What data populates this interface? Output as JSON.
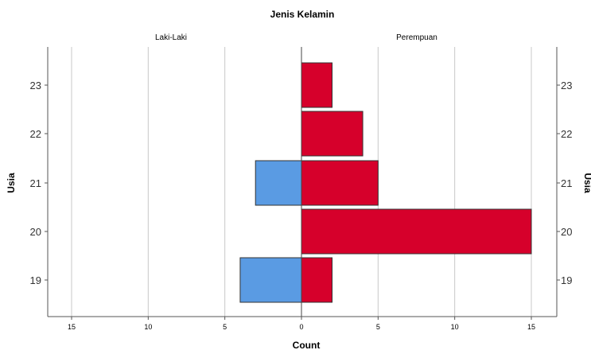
{
  "chart_data": {
    "type": "bar",
    "orientation": "horizontal",
    "title": "Jenis Kelamin",
    "categories": [
      "19",
      "20",
      "21",
      "22",
      "23"
    ],
    "series": [
      {
        "name": "Laki-Laki",
        "values": [
          4,
          0,
          3,
          0,
          0
        ],
        "color": "#5a9be3"
      },
      {
        "name": "Perempuan",
        "values": [
          2,
          15,
          5,
          4,
          2
        ],
        "color": "#d6002b"
      }
    ],
    "xlabel": "Count",
    "ylabel": "Usia",
    "xlim": [
      0,
      15
    ],
    "x_ticks": [
      0,
      5,
      10,
      15
    ],
    "grid": true
  }
}
